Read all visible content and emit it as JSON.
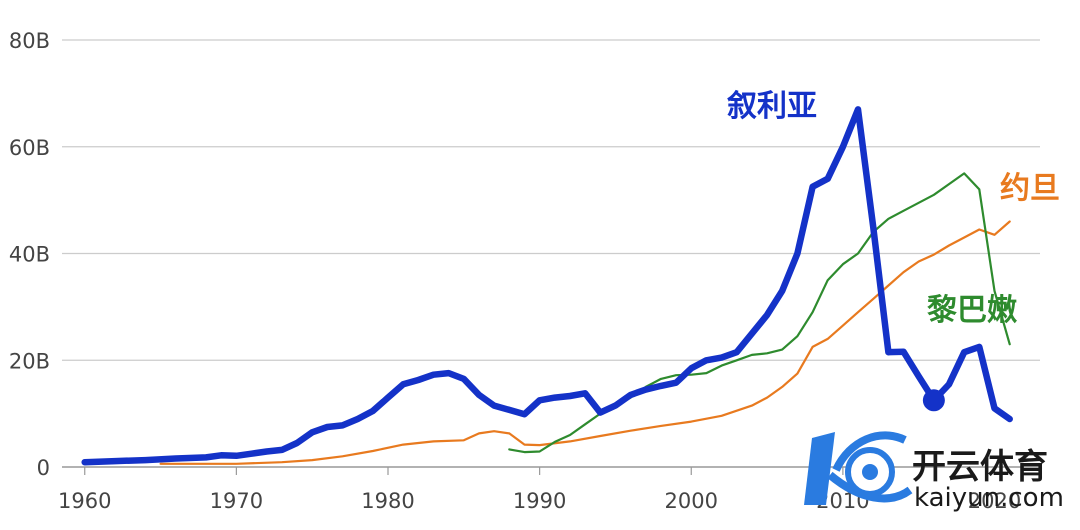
{
  "chart_data": {
    "type": "line",
    "title": "",
    "xlabel": "",
    "ylabel": "",
    "xlim": [
      1958.5,
      2023
    ],
    "ylim": [
      0,
      80
    ],
    "grid": true,
    "y_ticks": [
      {
        "value": 0,
        "label": "0"
      },
      {
        "value": 20,
        "label": "20B"
      },
      {
        "value": 40,
        "label": "40B"
      },
      {
        "value": 60,
        "label": "60B"
      },
      {
        "value": 80,
        "label": "80B"
      }
    ],
    "x_ticks": [
      {
        "value": 1960,
        "label": "1960"
      },
      {
        "value": 1970,
        "label": "1970"
      },
      {
        "value": 1980,
        "label": "1980"
      },
      {
        "value": 1990,
        "label": "1990"
      },
      {
        "value": 2000,
        "label": "2000"
      },
      {
        "value": 2010,
        "label": "2010"
      },
      {
        "value": 2020,
        "label": "2020"
      }
    ],
    "series": [
      {
        "name": "约旦",
        "color": "#e87a1f",
        "label_x": 1999,
        "label_y": 52,
        "points": [
          [
            1965,
            0.6
          ],
          [
            1968,
            0.6
          ],
          [
            1970,
            0.6
          ],
          [
            1973,
            0.9
          ],
          [
            1975,
            1.3
          ],
          [
            1977,
            2.0
          ],
          [
            1979,
            3.0
          ],
          [
            1981,
            4.2
          ],
          [
            1983,
            4.8
          ],
          [
            1985,
            5.0
          ],
          [
            1986,
            6.3
          ],
          [
            1987,
            6.7
          ],
          [
            1988,
            6.3
          ],
          [
            1989,
            4.2
          ],
          [
            1990,
            4.1
          ],
          [
            1992,
            4.8
          ],
          [
            1994,
            5.8
          ],
          [
            1996,
            6.8
          ],
          [
            1998,
            7.7
          ],
          [
            2000,
            8.5
          ],
          [
            2002,
            9.6
          ],
          [
            2004,
            11.5
          ],
          [
            2005,
            13.0
          ],
          [
            2006,
            15.0
          ],
          [
            2007,
            17.5
          ],
          [
            2008,
            22.5
          ],
          [
            2009,
            24.0
          ],
          [
            2010,
            26.5
          ],
          [
            2011,
            29.0
          ],
          [
            2012,
            31.5
          ],
          [
            2013,
            34.0
          ],
          [
            2014,
            36.5
          ],
          [
            2015,
            38.5
          ],
          [
            2016,
            39.8
          ],
          [
            2017,
            41.5
          ],
          [
            2018,
            43.0
          ],
          [
            2019,
            44.5
          ],
          [
            2020,
            43.5
          ],
          [
            2021,
            46.0
          ]
        ]
      },
      {
        "name": "黎巴嫩",
        "color": "#2e8b2e",
        "label_x": 1997,
        "label_y": 29,
        "points": [
          [
            1988,
            3.3
          ],
          [
            1989,
            2.8
          ],
          [
            1990,
            2.9
          ],
          [
            1991,
            4.7
          ],
          [
            1992,
            6.0
          ],
          [
            1993,
            8.0
          ],
          [
            1994,
            10.0
          ],
          [
            1995,
            11.5
          ],
          [
            1996,
            13.0
          ],
          [
            1997,
            15.0
          ],
          [
            1998,
            16.5
          ],
          [
            1999,
            17.2
          ],
          [
            2000,
            17.3
          ],
          [
            2001,
            17.6
          ],
          [
            2002,
            19.0
          ],
          [
            2003,
            20.0
          ],
          [
            2004,
            21.0
          ],
          [
            2005,
            21.3
          ],
          [
            2006,
            22.0
          ],
          [
            2007,
            24.5
          ],
          [
            2008,
            29.0
          ],
          [
            2009,
            35.0
          ],
          [
            2010,
            38.0
          ],
          [
            2011,
            40.0
          ],
          [
            2012,
            44.0
          ],
          [
            2013,
            46.5
          ],
          [
            2014,
            48.0
          ],
          [
            2015,
            49.5
          ],
          [
            2016,
            51.0
          ],
          [
            2017,
            53.0
          ],
          [
            2018,
            55.0
          ],
          [
            2019,
            52.0
          ],
          [
            2020,
            33.0
          ],
          [
            2021,
            23.0
          ]
        ]
      },
      {
        "name": "叙利亚",
        "color": "#1432c8",
        "label_x": 1995,
        "label_y": 68,
        "points": [
          [
            1960,
            0.9
          ],
          [
            1962,
            1.1
          ],
          [
            1964,
            1.3
          ],
          [
            1966,
            1.6
          ],
          [
            1968,
            1.8
          ],
          [
            1969,
            2.2
          ],
          [
            1970,
            2.1
          ],
          [
            1971,
            2.5
          ],
          [
            1972,
            2.9
          ],
          [
            1973,
            3.2
          ],
          [
            1974,
            4.5
          ],
          [
            1975,
            6.5
          ],
          [
            1976,
            7.5
          ],
          [
            1977,
            7.8
          ],
          [
            1978,
            9.0
          ],
          [
            1979,
            10.5
          ],
          [
            1980,
            13.0
          ],
          [
            1981,
            15.5
          ],
          [
            1982,
            16.3
          ],
          [
            1983,
            17.3
          ],
          [
            1984,
            17.6
          ],
          [
            1985,
            16.5
          ],
          [
            1986,
            13.5
          ],
          [
            1987,
            11.5
          ],
          [
            1988,
            10.7
          ],
          [
            1989,
            9.9
          ],
          [
            1990,
            12.5
          ],
          [
            1991,
            13.0
          ],
          [
            1992,
            13.3
          ],
          [
            1993,
            13.8
          ],
          [
            1994,
            10.2
          ],
          [
            1995,
            11.5
          ],
          [
            1996,
            13.5
          ],
          [
            1997,
            14.5
          ],
          [
            1998,
            15.2
          ],
          [
            1999,
            15.8
          ],
          [
            2000,
            18.5
          ],
          [
            2001,
            20.0
          ],
          [
            2002,
            20.5
          ],
          [
            2003,
            21.5
          ],
          [
            2004,
            25.0
          ],
          [
            2005,
            28.5
          ],
          [
            2006,
            33.0
          ],
          [
            2007,
            40.0
          ],
          [
            2008,
            52.5
          ],
          [
            2009,
            54.0
          ],
          [
            2010,
            60.0
          ],
          [
            2011,
            67.0
          ],
          [
            2012,
            45.0
          ],
          [
            2013,
            21.5
          ],
          [
            2014,
            21.6
          ],
          [
            2015,
            17.0
          ],
          [
            2016,
            12.5
          ],
          [
            2017,
            15.5
          ],
          [
            2018,
            21.5
          ],
          [
            2019,
            22.5
          ],
          [
            2020,
            11.0
          ],
          [
            2021,
            9.0
          ]
        ]
      }
    ],
    "highlight_point": {
      "series": "叙利亚",
      "x": 2016,
      "y": 12.5
    }
  },
  "watermark": {
    "brand": "开云体育",
    "site": "kaiyun.com"
  }
}
